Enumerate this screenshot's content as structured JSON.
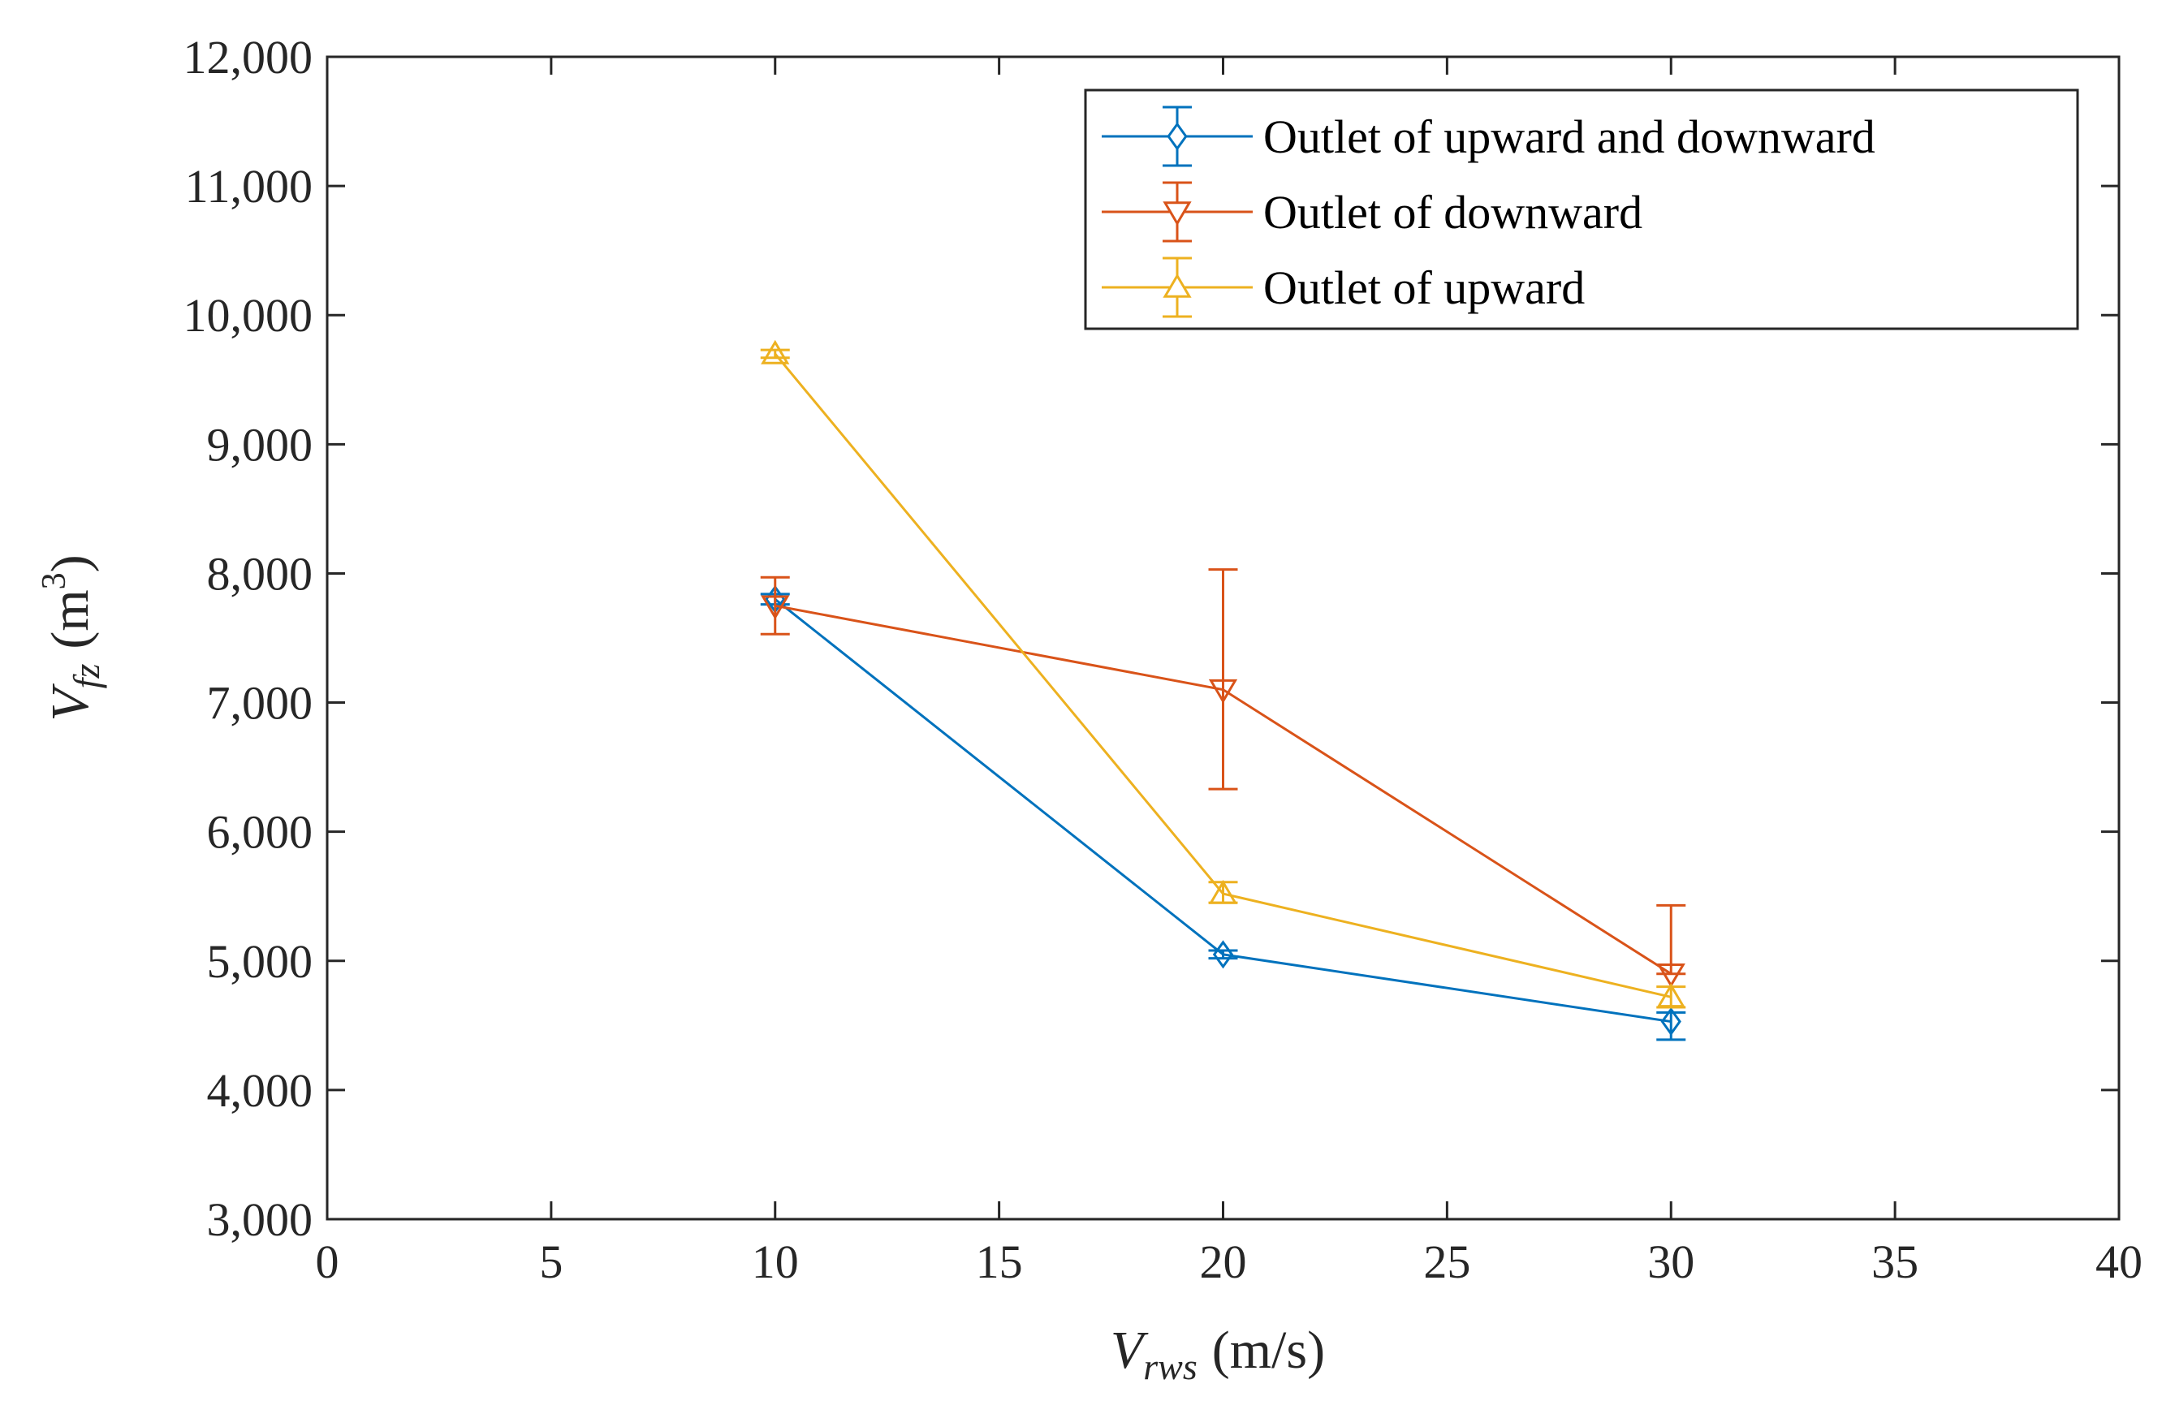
{
  "chart_data": {
    "type": "line",
    "title": "",
    "xlabel": "V_rws (m/s)",
    "xlabel_parts": {
      "symbol": "V",
      "subscript": "rws",
      "unit": "(m/s)"
    },
    "ylabel": "V_fz (m^3)",
    "ylabel_parts": {
      "symbol": "V",
      "subscript": "fz",
      "unit_open": "(m",
      "unit_power": "3",
      "unit_close": ")"
    },
    "xlim": [
      0,
      40
    ],
    "ylim": [
      3000,
      12000
    ],
    "xticks": [
      0,
      5,
      10,
      15,
      20,
      25,
      30,
      35,
      40
    ],
    "yticks": [
      3000,
      4000,
      5000,
      6000,
      7000,
      8000,
      9000,
      10000,
      11000,
      12000
    ],
    "xtick_labels": [
      "0",
      "5",
      "10",
      "15",
      "20",
      "25",
      "30",
      "35",
      "40"
    ],
    "ytick_labels": [
      "3,000",
      "4,000",
      "5,000",
      "6,000",
      "7,000",
      "8,000",
      "9,000",
      "10,000",
      "11,000",
      "12,000"
    ],
    "grid": false,
    "legend_position": "top-right",
    "series": [
      {
        "name": "Outlet of upward and downward",
        "color": "#0072BD",
        "marker": "diamond",
        "x": [
          10,
          20,
          30
        ],
        "y": [
          7800,
          5050,
          4530
        ],
        "err_low": [
          40,
          30,
          140
        ],
        "err_high": [
          40,
          30,
          70
        ]
      },
      {
        "name": "Outlet of downward",
        "color": "#D95319",
        "marker": "triangle-down",
        "x": [
          10,
          20,
          30
        ],
        "y": [
          7750,
          7100,
          4900
        ],
        "err_low": [
          220,
          770,
          0
        ],
        "err_high": [
          220,
          930,
          530
        ]
      },
      {
        "name": "Outlet of upward",
        "color": "#EDB120",
        "marker": "triangle-up",
        "x": [
          10,
          20,
          30
        ],
        "y": [
          9700,
          5520,
          4720
        ],
        "err_low": [
          30,
          70,
          80
        ],
        "err_high": [
          30,
          90,
          80
        ]
      }
    ]
  }
}
